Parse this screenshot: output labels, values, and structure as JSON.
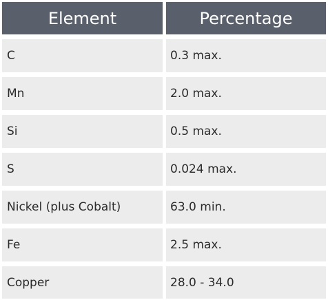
{
  "table": {
    "headers": [
      "Element",
      "Percentage"
    ],
    "rows": [
      [
        "C",
        "0.3 max."
      ],
      [
        "Mn",
        "2.0 max."
      ],
      [
        "Si",
        "0.5 max."
      ],
      [
        "S",
        "0.024 max."
      ],
      [
        "Nickel (plus Cobalt)",
        "63.0 min."
      ],
      [
        "Fe",
        "2.5 max."
      ],
      [
        "Copper",
        "28.0 - 34.0"
      ]
    ]
  },
  "colors": {
    "header_bg": "#59606b",
    "header_text": "#ffffff",
    "row_bg": "#ececec",
    "row_text": "#2b2b2b"
  }
}
